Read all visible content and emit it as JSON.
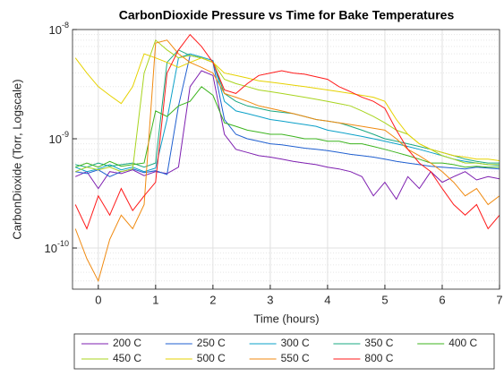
{
  "chart_data": {
    "type": "line",
    "title": "CarbonDioxide Pressure vs Time for Bake Temperatures",
    "x_label": "Time (hours)",
    "y_label": "CarbonDioxide (Torr, Logscale)",
    "log_y": true,
    "grid": true,
    "minor_grid": true,
    "legend_position": "bottom",
    "xlim": [
      -0.45,
      7
    ],
    "xticks": [
      0,
      1,
      2,
      3,
      4,
      5,
      6,
      7
    ],
    "ylim": [
      4.2e-11,
      1e-08
    ],
    "yticks": [
      {
        "value": 1e-10,
        "label": "10",
        "exponent": "-10"
      },
      {
        "value": 1e-09,
        "label": "10",
        "exponent": "-9"
      },
      {
        "value": 1e-08,
        "label": "10",
        "exponent": "-8"
      }
    ],
    "x": [
      -0.4,
      -0.2,
      0,
      0.2,
      0.4,
      0.6,
      0.8,
      1.0,
      1.2,
      1.4,
      1.6,
      1.8,
      2.0,
      2.2,
      2.4,
      2.6,
      2.8,
      3.0,
      3.2,
      3.4,
      3.6,
      3.8,
      4.0,
      4.2,
      4.4,
      4.6,
      4.8,
      5.0,
      5.2,
      5.4,
      5.6,
      5.8,
      6.0,
      6.2,
      6.4,
      6.6,
      6.8,
      7.0
    ],
    "series": [
      {
        "name": "200 C",
        "color": "#7e1fb0",
        "values": [
          4.5e-10,
          5e-10,
          3.5e-10,
          5e-10,
          4.8e-10,
          5.2e-10,
          4.6e-10,
          5e-10,
          4.8e-10,
          5.5e-10,
          3e-09,
          4.2e-09,
          3.8e-09,
          1.1e-09,
          8e-10,
          7.5e-10,
          7e-10,
          6.8e-10,
          6.5e-10,
          6.2e-10,
          6e-10,
          5.8e-10,
          5.5e-10,
          5.3e-10,
          5e-10,
          4.5e-10,
          3e-10,
          4e-10,
          2.8e-10,
          4.5e-10,
          3.5e-10,
          5e-10,
          4e-10,
          4.5e-10,
          5e-10,
          4.2e-10,
          4.5e-10,
          4.3e-10
        ]
      },
      {
        "name": "250 C",
        "color": "#1f5fd0",
        "values": [
          5e-10,
          4.8e-10,
          5.2e-10,
          4.5e-10,
          5e-10,
          5.3e-10,
          4.9e-10,
          5.1e-10,
          4.7e-10,
          2e-09,
          5.8e-09,
          5.5e-09,
          5e-09,
          1.5e-09,
          1.1e-09,
          1e-09,
          9.5e-10,
          9e-10,
          8.8e-10,
          8.5e-10,
          8.2e-10,
          8e-10,
          7.8e-10,
          7.5e-10,
          7.2e-10,
          7e-10,
          6.8e-10,
          6.5e-10,
          6.2e-10,
          6e-10,
          5.8e-10,
          5.6e-10,
          5.5e-10,
          5.4e-10,
          5.3e-10,
          5.5e-10,
          5.4e-10,
          5.3e-10
        ]
      },
      {
        "name": "300 C",
        "color": "#0aa0c8",
        "values": [
          5.5e-10,
          5e-10,
          5.3e-10,
          5.8e-10,
          5.2e-10,
          5.5e-10,
          5e-10,
          5.4e-10,
          1.5e-09,
          5.5e-09,
          6e-09,
          5.6e-09,
          5.2e-09,
          2.2e-09,
          1.8e-09,
          1.7e-09,
          1.6e-09,
          1.5e-09,
          1.45e-09,
          1.4e-09,
          1.35e-09,
          1.3e-09,
          1.2e-09,
          1.15e-09,
          1.1e-09,
          1.05e-09,
          1e-09,
          9.5e-10,
          9e-10,
          8.5e-10,
          8e-10,
          7.5e-10,
          7e-10,
          6.5e-10,
          6.2e-10,
          6e-10,
          5.8e-10,
          5.7e-10
        ]
      },
      {
        "name": "350 C",
        "color": "#1aa880",
        "values": [
          5.8e-10,
          5.5e-10,
          6e-10,
          5.6e-10,
          5.8e-10,
          6e-10,
          5.5e-10,
          6e-10,
          5e-09,
          6.5e-09,
          5.8e-09,
          5.5e-09,
          5e-09,
          2.6e-09,
          2.2e-09,
          2e-09,
          1.9e-09,
          1.8e-09,
          1.75e-09,
          1.7e-09,
          1.6e-09,
          1.5e-09,
          1.45e-09,
          1.4e-09,
          1.3e-09,
          1.2e-09,
          1.1e-09,
          1e-09,
          9.5e-10,
          9e-10,
          8.5e-10,
          8e-10,
          7.5e-10,
          7e-10,
          6.5e-10,
          6.2e-10,
          6e-10,
          6e-10
        ]
      },
      {
        "name": "400 C",
        "color": "#3cb41e",
        "values": [
          5.5e-10,
          6e-10,
          5.5e-10,
          6.2e-10,
          5.6e-10,
          5.8e-10,
          6e-10,
          1.8e-09,
          1.6e-09,
          2e-09,
          2.2e-09,
          3e-09,
          2.5e-09,
          1.4e-09,
          1.3e-09,
          1.2e-09,
          1.15e-09,
          1.1e-09,
          1.1e-09,
          1.05e-09,
          1e-09,
          1e-09,
          9.5e-10,
          9.5e-10,
          9e-10,
          9e-10,
          8.5e-10,
          8e-10,
          7.5e-10,
          7e-10,
          6.5e-10,
          6e-10,
          6e-10,
          5.8e-10,
          5.5e-10,
          5.6e-10,
          5.5e-10,
          5.5e-10
        ]
      },
      {
        "name": "450 C",
        "color": "#a8d41e",
        "values": [
          5e-10,
          5.5e-10,
          5.2e-10,
          5.5e-10,
          5e-10,
          5.3e-10,
          4e-09,
          8e-09,
          6.5e-09,
          5.5e-09,
          5.8e-09,
          5.5e-09,
          5e-09,
          3.5e-09,
          3.2e-09,
          3e-09,
          2.8e-09,
          2.7e-09,
          2.6e-09,
          2.5e-09,
          2.4e-09,
          2.3e-09,
          2.2e-09,
          2.1e-09,
          2e-09,
          1.8e-09,
          1.6e-09,
          1.4e-09,
          1.2e-09,
          1.1e-09,
          9e-10,
          8e-10,
          7e-10,
          6.5e-10,
          6e-10,
          6e-10,
          5.8e-10,
          5.8e-10
        ]
      },
      {
        "name": "500 C",
        "color": "#e6d200",
        "values": [
          5.5e-09,
          4e-09,
          3e-09,
          2.5e-09,
          2.1e-09,
          3e-09,
          6e-09,
          5.5e-09,
          5e-09,
          4.5e-09,
          5e-09,
          5.5e-09,
          5e-09,
          4e-09,
          3.8e-09,
          3.6e-09,
          3.4e-09,
          3.3e-09,
          3.2e-09,
          3.1e-09,
          3e-09,
          2.9e-09,
          2.8e-09,
          2.7e-09,
          2.6e-09,
          2.5e-09,
          2.4e-09,
          2.2e-09,
          1.5e-09,
          1.1e-09,
          9e-10,
          8e-10,
          7.5e-10,
          7e-10,
          6.8e-10,
          6.5e-10,
          6.5e-10,
          6.3e-10
        ]
      },
      {
        "name": "550 C",
        "color": "#f08a10",
        "values": [
          1.5e-10,
          8e-11,
          5e-11,
          1.2e-10,
          2e-10,
          1.5e-10,
          2.5e-10,
          7.5e-09,
          8e-09,
          6e-09,
          5e-09,
          4.5e-09,
          4e-09,
          2.6e-09,
          2.4e-09,
          2.2e-09,
          2e-09,
          1.9e-09,
          1.8e-09,
          1.7e-09,
          1.6e-09,
          1.5e-09,
          1.45e-09,
          1.4e-09,
          1.35e-09,
          1.3e-09,
          1.25e-09,
          1.2e-09,
          1e-09,
          8e-10,
          7e-10,
          6e-10,
          5e-10,
          4e-10,
          3e-10,
          3.5e-10,
          2.5e-10,
          3e-10
        ]
      },
      {
        "name": "800 C",
        "color": "#ff1a1a",
        "values": [
          2.5e-10,
          1.5e-10,
          3e-10,
          2e-10,
          3.5e-10,
          2.2e-10,
          3e-10,
          4e-10,
          4e-09,
          6.5e-09,
          9e-09,
          7e-09,
          5e-09,
          2.8e-09,
          2.6e-09,
          3.2e-09,
          3.8e-09,
          4e-09,
          4.2e-09,
          4e-09,
          3.9e-09,
          3.7e-09,
          3.5e-09,
          3e-09,
          2.7e-09,
          2.4e-09,
          2.2e-09,
          1.9e-09,
          1.2e-09,
          8e-10,
          6e-10,
          5e-10,
          3.5e-10,
          2.5e-10,
          2e-10,
          2.5e-10,
          1.5e-10,
          2e-10
        ]
      }
    ]
  }
}
